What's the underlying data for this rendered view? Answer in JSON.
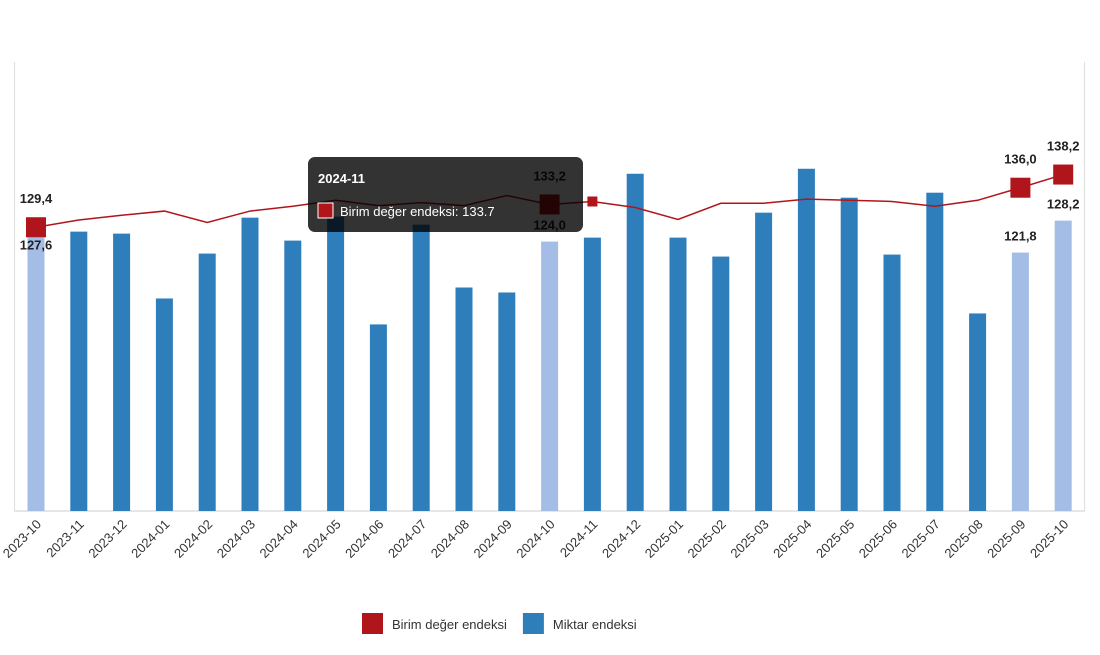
{
  "chart_data": {
    "type": "bar-line",
    "categories": [
      "2023-10",
      "2023-11",
      "2023-12",
      "2024-01",
      "2024-02",
      "2024-03",
      "2024-04",
      "2024-05",
      "2024-06",
      "2024-07",
      "2024-08",
      "2024-09",
      "2024-10",
      "2024-11",
      "2024-12",
      "2025-01",
      "2025-02",
      "2025-03",
      "2025-04",
      "2025-05",
      "2025-06",
      "2025-07",
      "2025-08",
      "2025-09",
      "2025-10"
    ],
    "series": [
      {
        "name": "Birim değer endeksi",
        "type": "line",
        "axis": "y2",
        "color": "#b0151c",
        "values": [
          129.4,
          130.6,
          131.4,
          132.1,
          130.2,
          132.1,
          132.9,
          133.9,
          133.0,
          133.5,
          133.0,
          134.7,
          133.2,
          133.7,
          132.7,
          130.7,
          133.4,
          133.4,
          134.1,
          133.9,
          133.7,
          132.9,
          133.9,
          136.0,
          138.2
        ],
        "value_labels": [
          "129,4",
          null,
          null,
          null,
          null,
          null,
          null,
          null,
          null,
          null,
          null,
          null,
          "133,2",
          null,
          null,
          null,
          null,
          null,
          null,
          null,
          null,
          null,
          null,
          "136,0",
          "138,2"
        ]
      },
      {
        "name": "Miktar endeksi",
        "type": "bar",
        "color": "#2f7ebc",
        "highlight_color": "#a3bde6",
        "highlighted": [
          0,
          12,
          23,
          24
        ],
        "values": [
          127.6,
          126.0,
          125.6,
          112.6,
          121.6,
          128.8,
          124.2,
          129.0,
          107.4,
          127.4,
          114.8,
          113.8,
          124.0,
          124.8,
          137.6,
          124.8,
          121.0,
          129.8,
          138.6,
          132.8,
          121.4,
          133.8,
          109.6,
          121.8,
          128.2
        ],
        "value_labels": [
          "127,6",
          null,
          null,
          null,
          null,
          null,
          null,
          null,
          null,
          null,
          null,
          null,
          "124,0",
          null,
          null,
          null,
          null,
          null,
          null,
          null,
          null,
          null,
          null,
          "121,8",
          "128,2"
        ]
      }
    ],
    "ylim": [
      70,
      160
    ],
    "y2lim": [
      82,
      157
    ],
    "legend": "bottom",
    "tooltip": {
      "index": 13,
      "title": "2024-11",
      "text": "Birim değer endeksi: 133.7"
    }
  }
}
